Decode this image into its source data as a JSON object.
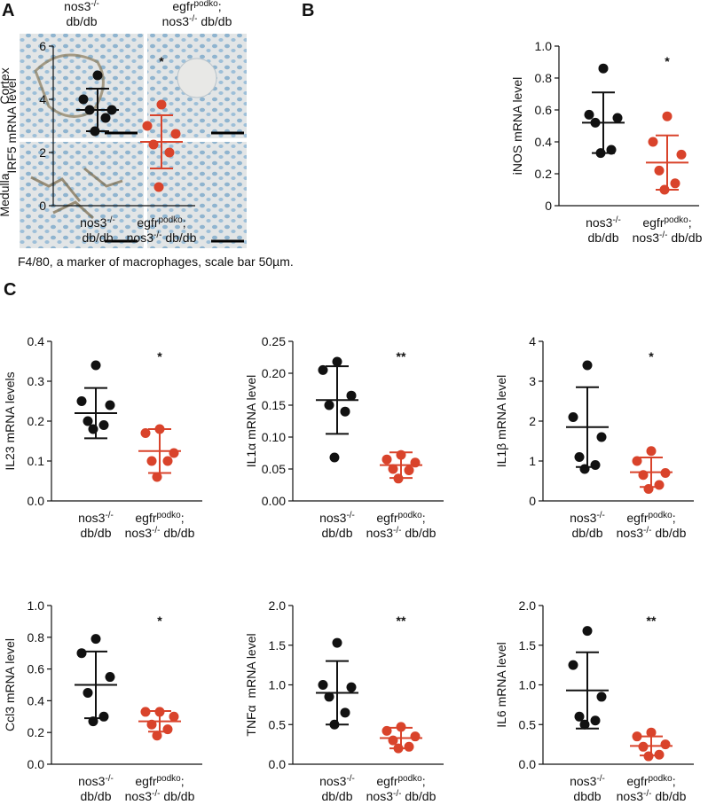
{
  "panel_a": {
    "label": "A",
    "columns": [
      [
        [
          {
            "text": "nos3"
          },
          {
            "text": "-/-",
            "sup": true
          }
        ],
        [
          {
            "text": "db/db"
          }
        ]
      ],
      [
        [
          {
            "text": "egfr"
          },
          {
            "text": "podko",
            "sup": true
          },
          {
            "text": ";"
          }
        ],
        [
          {
            "text": "nos3"
          },
          {
            "text": "-/-",
            "sup": true
          },
          {
            "text": " db/db"
          }
        ]
      ]
    ],
    "rows": [
      "Cortex",
      "Medulla"
    ],
    "caption": "F4/80, a marker of macrophages, scale bar 50µm."
  },
  "panel_b": {
    "label": "B"
  },
  "panel_c": {
    "label": "C"
  },
  "chart_data": [
    {
      "type": "dotplot",
      "ylabel": "IRF5 mRNA level",
      "ylim": [
        0,
        6
      ],
      "yticks": [
        0,
        2,
        4,
        6
      ],
      "annotation": "*",
      "groups": [
        {
          "label": [
            [
              {
                "text": "nos3"
              },
              {
                "text": "-/-",
                "sup": true
              }
            ],
            [
              {
                "text": "db/db"
              }
            ]
          ],
          "color": "#111111",
          "values": [
            4.9,
            4.0,
            3.6,
            3.6,
            3.3,
            2.8
          ],
          "mean": 3.6,
          "sd": 0.8
        },
        {
          "label": [
            [
              {
                "text": "egfr"
              },
              {
                "text": "podko",
                "sup": true
              },
              {
                "text": ";"
              }
            ],
            [
              {
                "text": "nos3"
              },
              {
                "text": "-/-",
                "sup": true
              },
              {
                "text": " db/db"
              }
            ]
          ],
          "color": "#d9432b",
          "values": [
            3.8,
            3.0,
            2.7,
            2.3,
            2.0,
            0.7
          ],
          "mean": 2.4,
          "sd": 1.0
        }
      ]
    },
    {
      "type": "dotplot",
      "ylabel": "iNOS mRNA level",
      "ylim": [
        0,
        1
      ],
      "yticks": [
        0,
        0.2,
        0.4,
        0.6,
        0.8,
        {
          "value": 1,
          "label": "1.0"
        }
      ],
      "annotation": "*",
      "groups": [
        {
          "label": [
            [
              {
                "text": "nos3"
              },
              {
                "text": "-/-",
                "sup": true
              }
            ],
            [
              {
                "text": "db/db"
              }
            ]
          ],
          "color": "#111111",
          "values": [
            0.86,
            0.57,
            0.55,
            0.52,
            0.35,
            0.33
          ],
          "mean": 0.52,
          "sd": 0.19
        },
        {
          "label": [
            [
              {
                "text": "egfr"
              },
              {
                "text": "podko",
                "sup": true
              },
              {
                "text": ";"
              }
            ],
            [
              {
                "text": "nos3"
              },
              {
                "text": "-/-",
                "sup": true
              },
              {
                "text": " db/db"
              }
            ]
          ],
          "color": "#d9432b",
          "values": [
            0.56,
            0.4,
            0.32,
            0.22,
            0.14,
            0.1
          ],
          "mean": 0.27,
          "sd": 0.17
        }
      ]
    },
    {
      "type": "dotplot",
      "ylabel": "IL23 mRNA levels",
      "ylim": [
        0,
        0.4
      ],
      "yticks": [
        {
          "value": 0,
          "label": "0.0"
        },
        0.1,
        0.2,
        0.3,
        0.4
      ],
      "annotation": "*",
      "groups": [
        {
          "label": [
            [
              {
                "text": "nos3"
              },
              {
                "text": "-/-",
                "sup": true
              }
            ],
            [
              {
                "text": "db/db"
              }
            ]
          ],
          "color": "#111111",
          "values": [
            0.34,
            0.25,
            0.24,
            0.2,
            0.19,
            0.18
          ],
          "mean": 0.22,
          "sd": 0.063
        },
        {
          "label": [
            [
              {
                "text": "egfr"
              },
              {
                "text": "podko",
                "sup": true
              },
              {
                "text": ";"
              }
            ],
            [
              {
                "text": "nos3"
              },
              {
                "text": "-/-",
                "sup": true
              },
              {
                "text": " db/db"
              }
            ]
          ],
          "color": "#d9432b",
          "values": [
            0.18,
            0.17,
            0.12,
            0.1,
            0.1,
            0.06
          ],
          "mean": 0.125,
          "sd": 0.055
        }
      ]
    },
    {
      "type": "dotplot",
      "ylabel": "IL1α mRNA level",
      "ylim": [
        0,
        0.25
      ],
      "yticks": [
        {
          "value": 0,
          "label": "0.00"
        },
        0.05,
        {
          "value": 0.1,
          "label": "0.10"
        },
        0.15,
        {
          "value": 0.2,
          "label": "0.20"
        },
        0.25
      ],
      "annotation": "**",
      "groups": [
        {
          "label": [
            [
              {
                "text": "nos3"
              },
              {
                "text": "-/-",
                "sup": true
              }
            ],
            [
              {
                "text": "db/db"
              }
            ]
          ],
          "color": "#111111",
          "values": [
            0.218,
            0.205,
            0.165,
            0.15,
            0.14,
            0.068
          ],
          "mean": 0.158,
          "sd": 0.053
        },
        {
          "label": [
            [
              {
                "text": "egfr"
              },
              {
                "text": "podko",
                "sup": true
              },
              {
                "text": ";"
              }
            ],
            [
              {
                "text": "nos3"
              },
              {
                "text": "-/-",
                "sup": true
              },
              {
                "text": " db/db"
              }
            ]
          ],
          "color": "#d9432b",
          "values": [
            0.072,
            0.065,
            0.06,
            0.05,
            0.048,
            0.035
          ],
          "mean": 0.056,
          "sd": 0.02
        }
      ]
    },
    {
      "type": "dotplot",
      "ylabel": "IL1β mRNA level",
      "ylim": [
        0,
        4
      ],
      "yticks": [
        0,
        1,
        2,
        3,
        4
      ],
      "annotation": "*",
      "groups": [
        {
          "label": [
            [
              {
                "text": "nos3"
              },
              {
                "text": "-/-",
                "sup": true
              }
            ],
            [
              {
                "text": "db/db"
              }
            ]
          ],
          "color": "#111111",
          "values": [
            3.4,
            2.1,
            1.6,
            1.1,
            0.9,
            0.8
          ],
          "mean": 1.85,
          "sd": 1.0
        },
        {
          "label": [
            [
              {
                "text": "egfr"
              },
              {
                "text": "podko",
                "sup": true
              },
              {
                "text": ";"
              }
            ],
            [
              {
                "text": "nos3"
              },
              {
                "text": "-/-",
                "sup": true
              },
              {
                "text": " db/db"
              }
            ]
          ],
          "color": "#d9432b",
          "values": [
            1.25,
            1.0,
            0.7,
            0.65,
            0.4,
            0.3
          ],
          "mean": 0.72,
          "sd": 0.37
        }
      ]
    },
    {
      "type": "dotplot",
      "ylabel": "Ccl3 mRNA level",
      "ylim": [
        0,
        1
      ],
      "yticks": [
        {
          "value": 0,
          "label": "0.0"
        },
        0.2,
        0.4,
        0.6,
        0.8,
        {
          "value": 1,
          "label": "1.0"
        }
      ],
      "annotation": "*",
      "groups": [
        {
          "label": [
            [
              {
                "text": "nos3"
              },
              {
                "text": "-/-",
                "sup": true
              }
            ],
            [
              {
                "text": "db/db"
              }
            ]
          ],
          "color": "#111111",
          "values": [
            0.79,
            0.7,
            0.55,
            0.45,
            0.3,
            0.27
          ],
          "mean": 0.5,
          "sd": 0.21
        },
        {
          "label": [
            [
              {
                "text": "egfr"
              },
              {
                "text": "podko",
                "sup": true
              },
              {
                "text": ";"
              }
            ],
            [
              {
                "text": "nos3"
              },
              {
                "text": "-/-",
                "sup": true
              },
              {
                "text": " db/db"
              }
            ]
          ],
          "color": "#d9432b",
          "values": [
            0.33,
            0.33,
            0.3,
            0.25,
            0.22,
            0.18
          ],
          "mean": 0.27,
          "sd": 0.065
        }
      ]
    },
    {
      "type": "dotplot",
      "ylabel": "TNFα  mRNA level",
      "ylim": [
        0,
        2
      ],
      "yticks": [
        {
          "value": 0,
          "label": "0.0"
        },
        0.5,
        {
          "value": 1,
          "label": "1.0"
        },
        1.5,
        {
          "value": 2,
          "label": "2.0"
        }
      ],
      "annotation": "**",
      "groups": [
        {
          "label": [
            [
              {
                "text": "nos3"
              },
              {
                "text": "-/-",
                "sup": true
              }
            ],
            [
              {
                "text": "db/db"
              }
            ]
          ],
          "color": "#111111",
          "values": [
            1.53,
            1.0,
            0.97,
            0.85,
            0.65,
            0.5
          ],
          "mean": 0.9,
          "sd": 0.4
        },
        {
          "label": [
            [
              {
                "text": "egfr"
              },
              {
                "text": "podko",
                "sup": true
              },
              {
                "text": ";"
              }
            ],
            [
              {
                "text": "nos3"
              },
              {
                "text": "-/-",
                "sup": true
              },
              {
                "text": " db/db"
              }
            ]
          ],
          "color": "#d9432b",
          "values": [
            0.47,
            0.42,
            0.35,
            0.3,
            0.22,
            0.2
          ],
          "mean": 0.33,
          "sd": 0.13
        }
      ]
    },
    {
      "type": "dotplot",
      "ylabel": "IL6 mRNA level",
      "ylim": [
        0,
        2
      ],
      "yticks": [
        {
          "value": 0,
          "label": "0.0"
        },
        0.5,
        {
          "value": 1,
          "label": "1.0"
        },
        1.5,
        {
          "value": 2,
          "label": "2.0"
        }
      ],
      "annotation": "**",
      "groups": [
        {
          "label": [
            [
              {
                "text": "nos3"
              },
              {
                "text": "-/-",
                "sup": true
              }
            ],
            [
              {
                "text": "dbdb"
              }
            ]
          ],
          "color": "#111111",
          "values": [
            1.68,
            1.25,
            0.85,
            0.6,
            0.55,
            0.5
          ],
          "mean": 0.93,
          "sd": 0.48
        },
        {
          "label": [
            [
              {
                "text": "egfr"
              },
              {
                "text": "podko",
                "sup": true
              },
              {
                "text": ";"
              }
            ],
            [
              {
                "text": "nos3"
              },
              {
                "text": "-/-",
                "sup": true
              },
              {
                "text": " db/db"
              }
            ]
          ],
          "color": "#d9432b",
          "values": [
            0.4,
            0.35,
            0.25,
            0.22,
            0.12,
            0.1
          ],
          "mean": 0.23,
          "sd": 0.12
        }
      ]
    }
  ]
}
